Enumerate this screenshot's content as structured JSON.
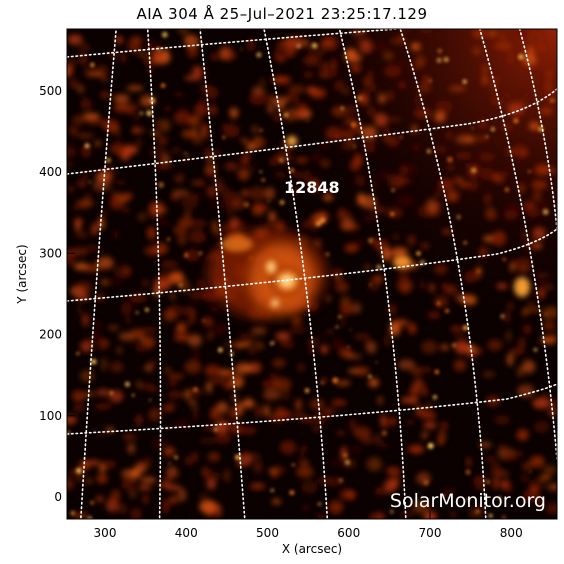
{
  "title": "AIA 304 Å 25–Jul–2021 23:25:17.129",
  "active_region": "12848",
  "watermark": "SolarMonitor.org",
  "x_axis": {
    "label": "X (arcsec)",
    "ticks": [
      "300",
      "400",
      "500",
      "600",
      "700",
      "800"
    ]
  },
  "y_axis": {
    "label": "Y (arcsec)",
    "ticks": [
      "0",
      "100",
      "200",
      "300",
      "400",
      "500"
    ]
  }
}
